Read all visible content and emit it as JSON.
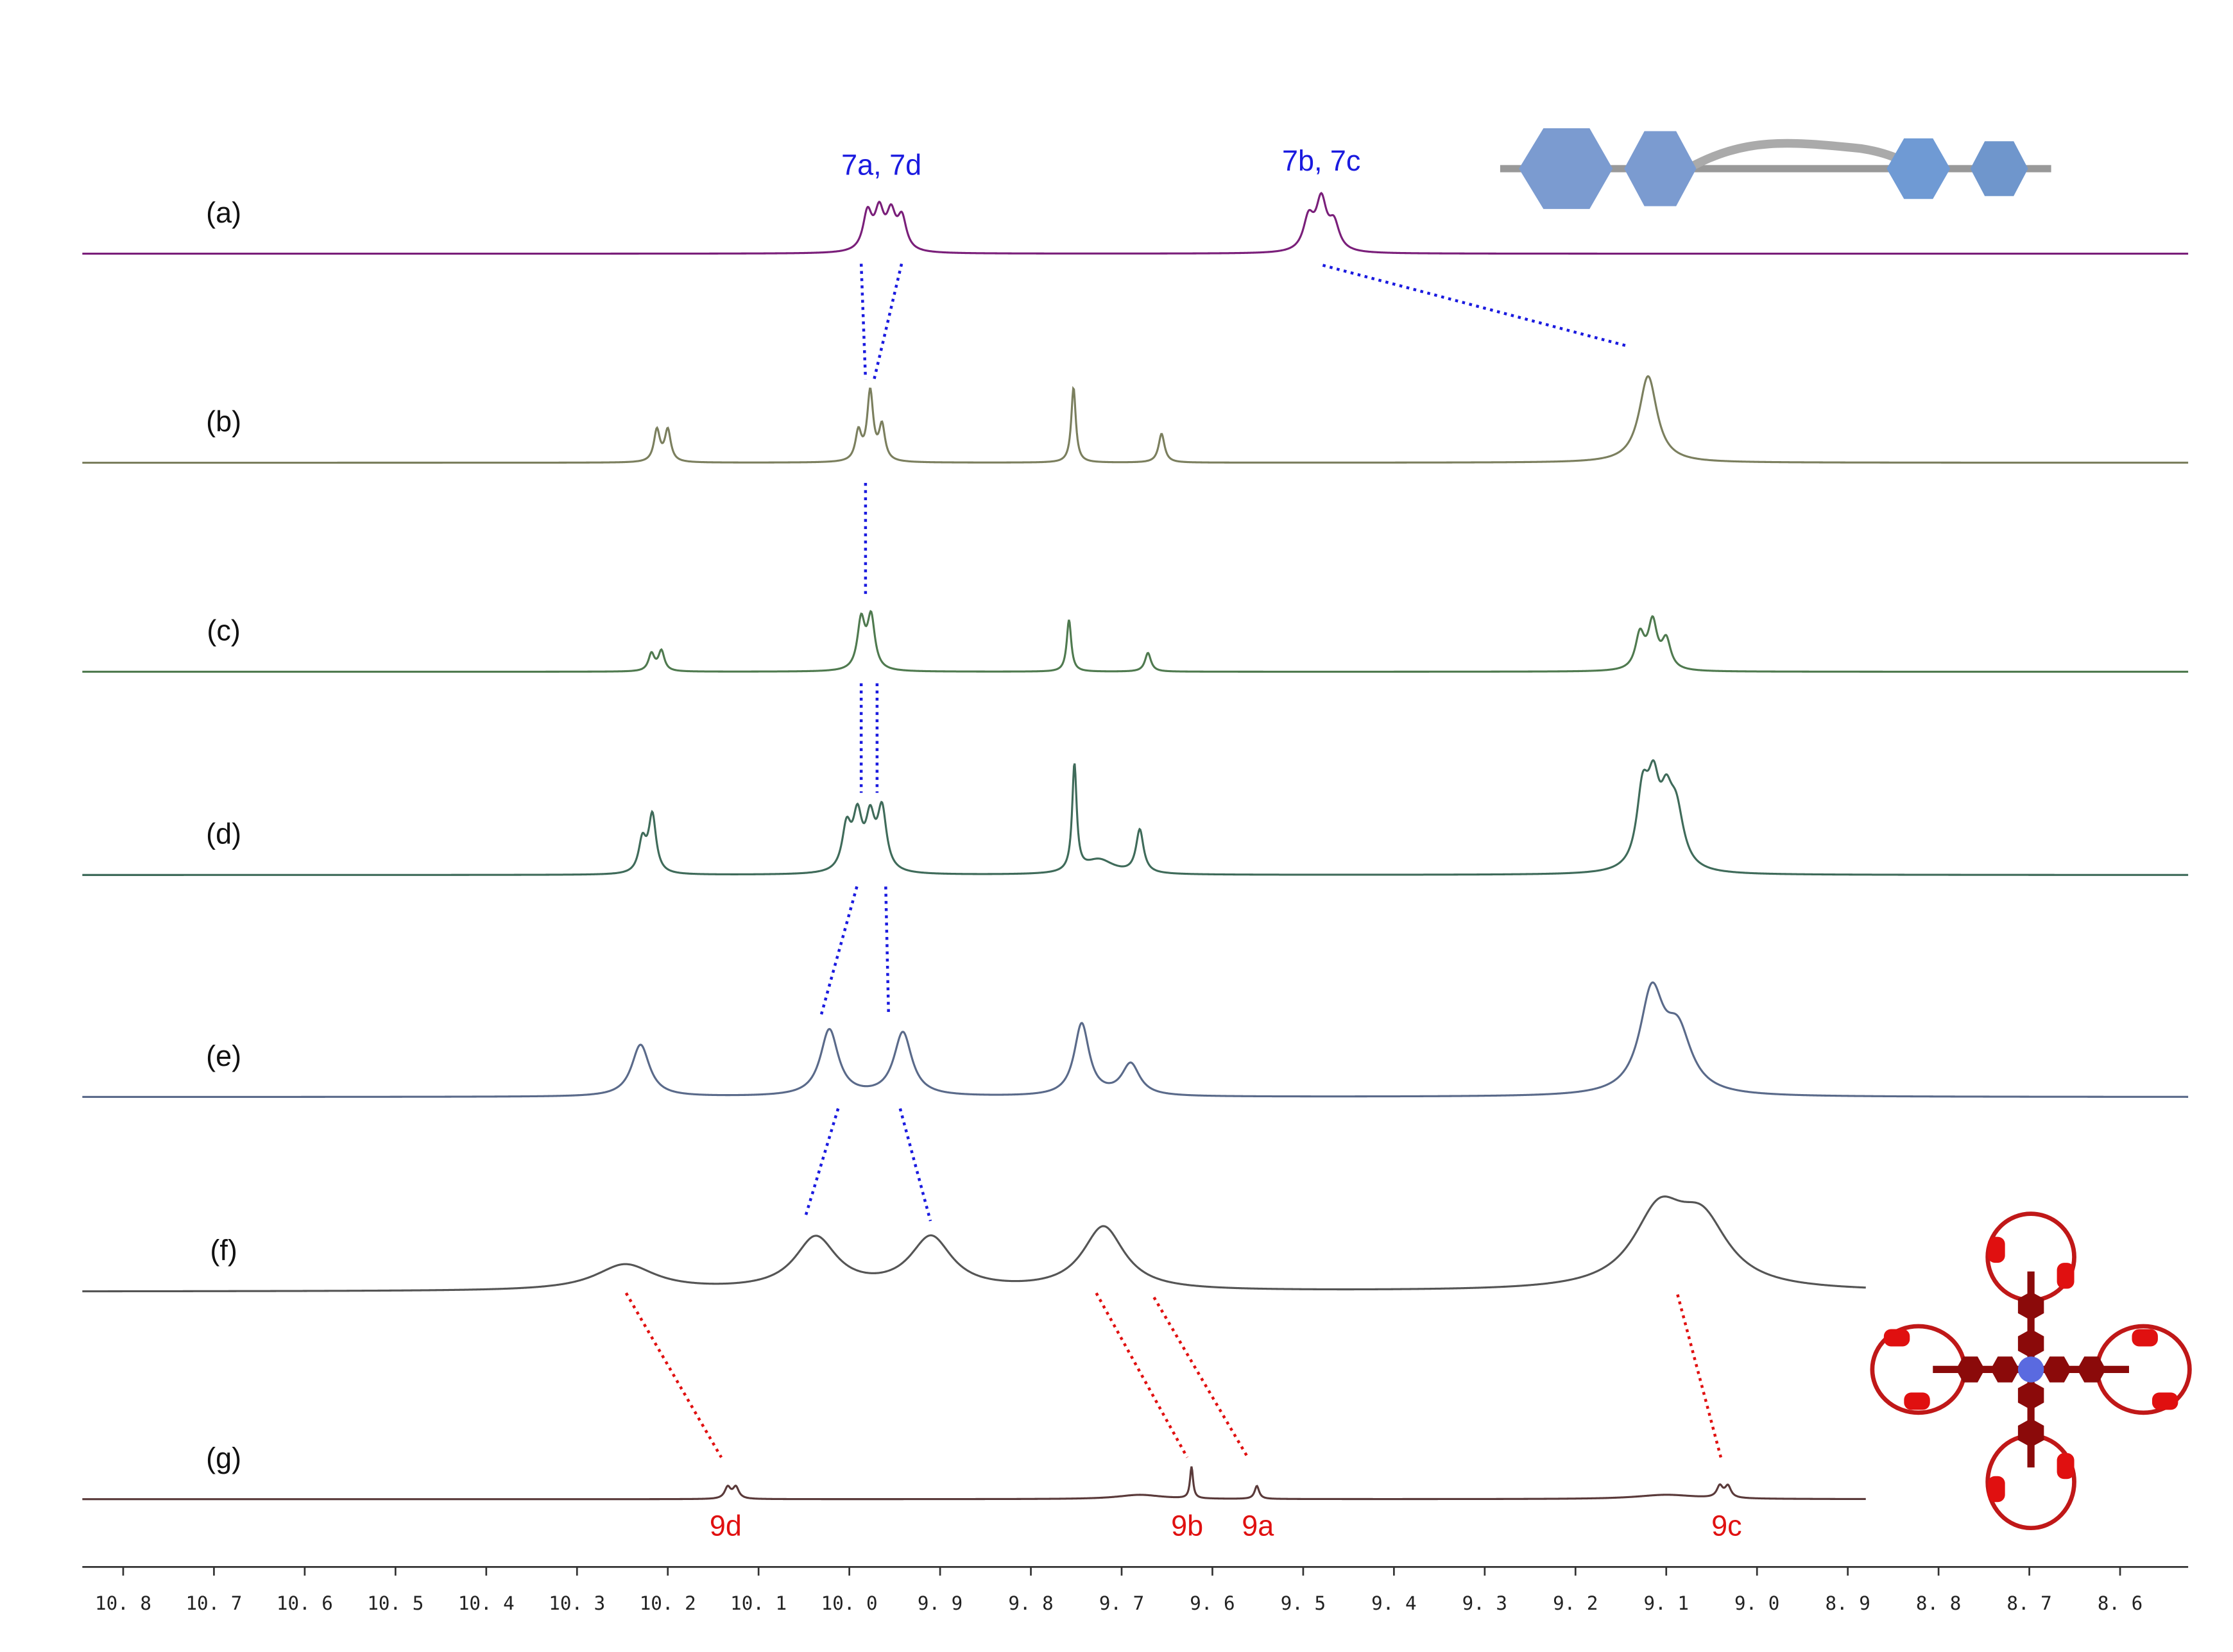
{
  "chart_data": {
    "type": "nmr-stack",
    "xlim": [
      10.845,
      8.525
    ],
    "xticks": [
      {
        "value": 10.8,
        "label": "10. 8"
      },
      {
        "value": 10.7,
        "label": "10. 7"
      },
      {
        "value": 10.6,
        "label": "10. 6"
      },
      {
        "value": 10.5,
        "label": "10. 5"
      },
      {
        "value": 10.4,
        "label": "10. 4"
      },
      {
        "value": 10.3,
        "label": "10. 3"
      },
      {
        "value": 10.2,
        "label": "10. 2"
      },
      {
        "value": 10.1,
        "label": "10. 1"
      },
      {
        "value": 10.0,
        "label": "10. 0"
      },
      {
        "value": 9.9,
        "label": "9. 9"
      },
      {
        "value": 9.8,
        "label": "9. 8"
      },
      {
        "value": 9.7,
        "label": "9. 7"
      },
      {
        "value": 9.6,
        "label": "9. 6"
      },
      {
        "value": 9.5,
        "label": "9. 5"
      },
      {
        "value": 9.4,
        "label": "9. 4"
      },
      {
        "value": 9.3,
        "label": "9. 3"
      },
      {
        "value": 9.2,
        "label": "9. 2"
      },
      {
        "value": 9.1,
        "label": "9. 1"
      },
      {
        "value": 9.0,
        "label": "9. 0"
      },
      {
        "value": 8.9,
        "label": "8. 9"
      },
      {
        "value": 8.8,
        "label": "8. 8"
      },
      {
        "value": 8.7,
        "label": "8. 7"
      },
      {
        "value": 8.6,
        "label": "8. 6"
      }
    ],
    "spectra": [
      {
        "label": "(a)",
        "color": "#7a1f7a",
        "range": [
          10.845,
          8.525
        ],
        "annotations": [
          "7a, 7d",
          "7b, 7c"
        ],
        "peaks": {
          "x": [
            9.98,
            9.967,
            9.954,
            9.942,
            9.494,
            9.48,
            9.466
          ],
          "height": [
            26,
            26,
            24,
            22,
            22,
            34,
            18
          ],
          "width": [
            0.006,
            0.006,
            0.006,
            0.006,
            0.007,
            0.007,
            0.007
          ]
        }
      },
      {
        "label": "(b)",
        "color": "#7b7f5e",
        "range": [
          10.845,
          8.525
        ],
        "peaks": {
          "x": [
            10.212,
            10.2,
            9.99,
            9.977,
            9.964,
            9.753,
            9.656,
            9.12
          ],
          "height": [
            22,
            22,
            20,
            48,
            24,
            52,
            20,
            60
          ],
          "width": [
            0.004,
            0.004,
            0.004,
            0.004,
            0.004,
            0.003,
            0.004,
            0.012
          ]
        }
      },
      {
        "label": "(c)",
        "color": "#4f7a4f",
        "range": [
          10.845,
          8.525
        ],
        "peaks": {
          "x": [
            10.218,
            10.207,
            9.987,
            9.976,
            9.758,
            9.671,
            9.129,
            9.115,
            9.1
          ],
          "height": [
            12,
            14,
            34,
            36,
            36,
            13,
            24,
            32,
            20
          ],
          "width": [
            0.004,
            0.004,
            0.005,
            0.005,
            0.003,
            0.004,
            0.006,
            0.006,
            0.006
          ]
        }
      },
      {
        "label": "(d)",
        "color": "#3f6b5a",
        "range": [
          10.845,
          8.525
        ],
        "peaks": {
          "x": [
            10.228,
            10.217,
            10.003,
            9.991,
            9.977,
            9.964,
            9.752,
            9.725,
            9.68,
            9.126,
            9.114,
            9.1,
            9.089
          ],
          "height": [
            22,
            40,
            30,
            36,
            34,
            42,
            74,
            10,
            30,
            50,
            50,
            36,
            38
          ],
          "width": [
            0.005,
            0.005,
            0.006,
            0.006,
            0.006,
            0.006,
            0.003,
            0.02,
            0.005,
            0.008,
            0.008,
            0.008,
            0.01
          ]
        }
      },
      {
        "label": "(e)",
        "color": "#5a6a8a",
        "range": [
          10.845,
          8.525
        ],
        "peaks": {
          "x": [
            10.23,
            10.022,
            9.941,
            9.744,
            9.69,
            9.116,
            9.087
          ],
          "height": [
            36,
            46,
            44,
            50,
            22,
            68,
            40
          ],
          "width": [
            0.012,
            0.012,
            0.012,
            0.01,
            0.012,
            0.016,
            0.018
          ]
        }
      },
      {
        "label": "(f)",
        "color": "#555555",
        "range": [
          10.845,
          8.88
        ],
        "peaks": {
          "x": [
            10.247,
            10.037,
            9.91,
            9.72,
            9.108,
            9.06
          ],
          "height": [
            18,
            36,
            36,
            44,
            50,
            42
          ],
          "width": [
            0.04,
            0.028,
            0.028,
            0.028,
            0.035,
            0.035
          ]
        }
      },
      {
        "label": "(g)",
        "color": "#5a3a3a",
        "range": [
          10.845,
          8.88
        ],
        "annotations": [
          "9d",
          "9b",
          "9a",
          "9c"
        ],
        "peaks": {
          "x": [
            10.134,
            10.125,
            9.623,
            9.551,
            9.041,
            9.032,
            9.68,
            9.1
          ],
          "height": [
            8,
            8,
            22,
            9,
            8,
            8,
            3,
            3
          ],
          "width": [
            0.004,
            0.004,
            0.002,
            0.003,
            0.004,
            0.004,
            0.03,
            0.04
          ]
        }
      }
    ]
  }
}
